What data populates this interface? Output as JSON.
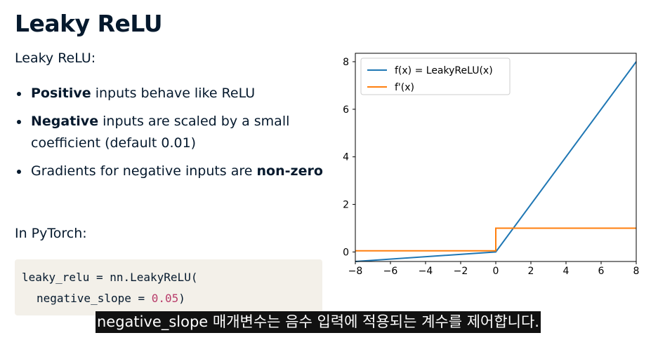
{
  "slide": {
    "title": "Leaky ReLU",
    "subtitle": "Leaky ReLU:",
    "bullets": [
      {
        "bold": "Positive",
        "text": " inputs behave like ReLU"
      },
      {
        "bold": "Negative",
        "text": " inputs are scaled by a small coefficient (default 0.01)"
      },
      {
        "pre": "Gradients for negative inputs are ",
        "bold": "non-zero"
      }
    ],
    "pytorch_label": "In PyTorch:",
    "code": {
      "line1": "leaky_relu = nn.LeakyReLU(",
      "line2_prefix": "negative_slope = ",
      "line2_number": "0.05",
      "line2_suffix": ")"
    }
  },
  "caption": "negative_slope 매개변수는 음수 입력에 적용되는 계수를 제어합니다.",
  "chart_data": {
    "type": "line",
    "xlim": [
      -8,
      8
    ],
    "ylim": [
      -0.4,
      8
    ],
    "x_ticks": [
      -8,
      -6,
      -4,
      -2,
      0,
      2,
      4,
      6,
      8
    ],
    "x_tick_labels": [
      "−8",
      "−6",
      "−4",
      "−2",
      "0",
      "2",
      "4",
      "6",
      "8"
    ],
    "y_ticks": [
      0,
      2,
      4,
      6,
      8
    ],
    "y_tick_labels": [
      "0",
      "2",
      "4",
      "6",
      "8"
    ],
    "legend_position": "top-left",
    "grid": false,
    "series": [
      {
        "name": "f(x) = LeakyReLU(x)",
        "color": "#1f77b4",
        "x": [
          -8,
          0,
          8
        ],
        "y": [
          -0.4,
          0,
          8
        ]
      },
      {
        "name": "f'(x)",
        "color": "#ff7f0e",
        "x": [
          -8,
          0,
          0,
          8
        ],
        "y": [
          0.05,
          0.05,
          1,
          1
        ]
      }
    ]
  }
}
